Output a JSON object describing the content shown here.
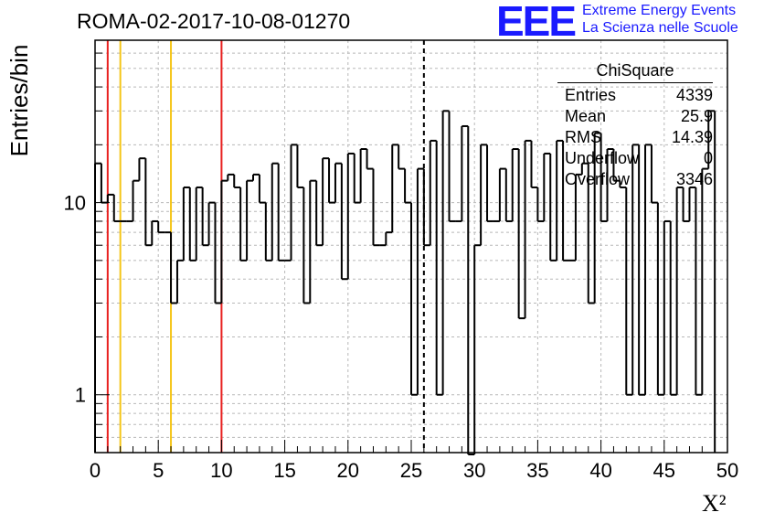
{
  "header": {
    "run_title": "ROMA-02-2017-10-08-01270",
    "logo_letters": "EEE",
    "logo_line1": "Extreme Energy Events",
    "logo_line2": "La Scienza nelle Scuole"
  },
  "stats_box": {
    "title": "ChiSquare",
    "rows": [
      {
        "label": "Entries",
        "value": "4339"
      },
      {
        "label": "Mean",
        "value": "25.9"
      },
      {
        "label": "RMS",
        "value": "14.39"
      },
      {
        "label": "Underflow",
        "value": "0"
      },
      {
        "label": "Overflow",
        "value": "3346"
      }
    ]
  },
  "chart_data": {
    "type": "bar",
    "style": "step-histogram",
    "title": "ROMA-02-2017-10-08-01270",
    "xlabel": "X²",
    "ylabel": "Entries/bin",
    "xlim": [
      0,
      50
    ],
    "ylim": [
      0.5,
      70
    ],
    "yscale": "log",
    "grid": true,
    "bin_width": 0.5,
    "x_ticks": [
      "0",
      "5",
      "10",
      "15",
      "20",
      "25",
      "30",
      "35",
      "40",
      "45",
      "50"
    ],
    "y_ticks": [
      "1",
      "10"
    ],
    "values": [
      16,
      10,
      11,
      8,
      8,
      8,
      13,
      17,
      6,
      8,
      7,
      7,
      3,
      5,
      12,
      5,
      12,
      6,
      10,
      3,
      13,
      14,
      12,
      5,
      13,
      14,
      10,
      5,
      16,
      5,
      5,
      20,
      12,
      3,
      13,
      6,
      17,
      10,
      16,
      4,
      18,
      10,
      19,
      15,
      6,
      6,
      7,
      20,
      15,
      10,
      1,
      15,
      6,
      21,
      1,
      30,
      8,
      8,
      25,
      0,
      6,
      20,
      8,
      8,
      15,
      8,
      19,
      2.5,
      21,
      12,
      8,
      18,
      5,
      21,
      5,
      5,
      14,
      16,
      3,
      23,
      8,
      19,
      13,
      12,
      1,
      20,
      1,
      20,
      10,
      1,
      8,
      1,
      12,
      8,
      12,
      1,
      15,
      30
    ],
    "reference_lines": [
      {
        "x": 1,
        "color": "#e8201f"
      },
      {
        "x": 2,
        "color": "#f5c518"
      },
      {
        "x": 6,
        "color": "#f5c518"
      },
      {
        "x": 10,
        "color": "#e8201f"
      }
    ],
    "mean_marker": {
      "x": 26,
      "style": "dashed",
      "color": "#000000"
    }
  }
}
